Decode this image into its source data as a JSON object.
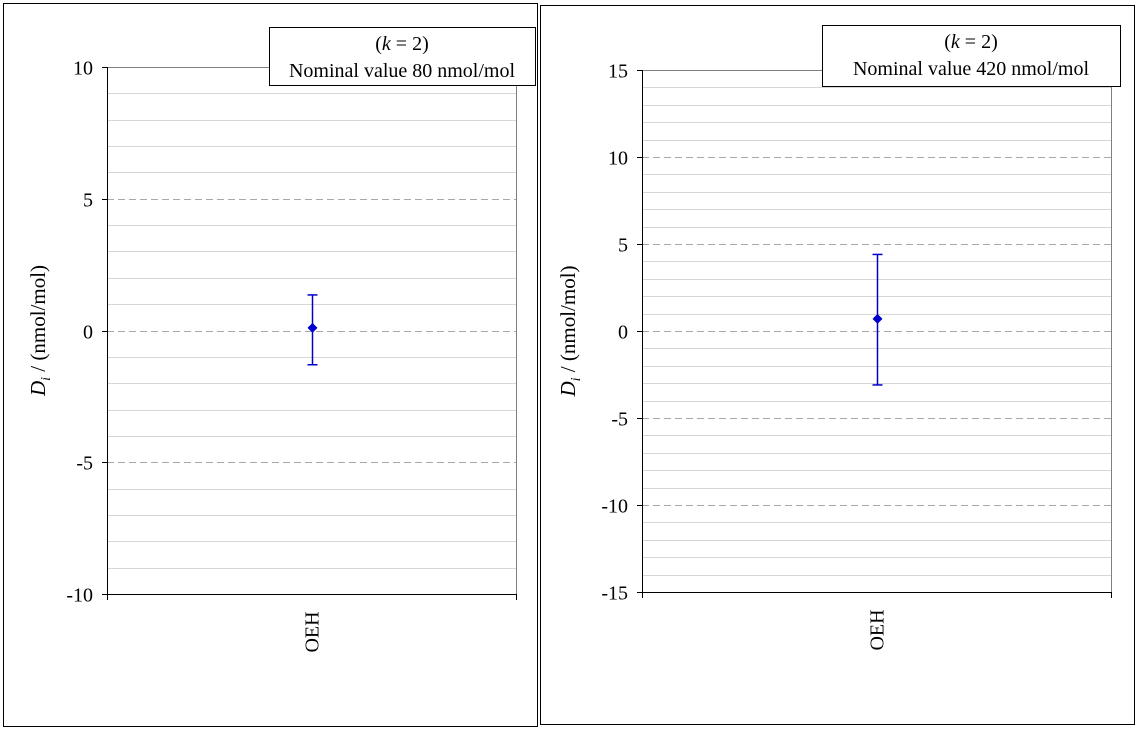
{
  "chart_data": [
    {
      "type": "scatter",
      "categories": [
        "OEH"
      ],
      "legend_lines": [
        "(k = 2)",
        "Nominal value 80 nmol/mol"
      ],
      "ylabel_main": "D",
      "ylabel_sub": "i",
      "ylabel_rest": " / (nmol/mol)",
      "ylim": [
        -10,
        10
      ],
      "yticks": [
        10,
        5,
        0,
        -5,
        -10
      ],
      "ytick_labels": [
        "10",
        "5",
        "0",
        "-5",
        "-10"
      ],
      "minor_step": 1,
      "points": [
        {
          "category": "OEH",
          "y": 0.1,
          "err_low": -1.3,
          "err_high": 1.35
        }
      ],
      "color": "#0000cc",
      "legend_position": "top-right"
    },
    {
      "type": "scatter",
      "categories": [
        "OEH"
      ],
      "legend_lines": [
        "(k = 2)",
        "Nominal value 420 nmol/mol"
      ],
      "ylabel_main": "D",
      "ylabel_sub": "i",
      "ylabel_rest": " / (nmol/mol)",
      "ylim": [
        -15,
        15
      ],
      "yticks": [
        15,
        10,
        5,
        0,
        -5,
        -10,
        -15
      ],
      "ytick_labels": [
        "15",
        "10",
        "5",
        "0",
        "-5",
        "-10",
        "-15"
      ],
      "minor_step": 1,
      "points": [
        {
          "category": "OEH",
          "y": 0.7,
          "err_low": -3.1,
          "err_high": 4.4
        }
      ],
      "color": "#0000cc",
      "legend_position": "top-right"
    }
  ]
}
